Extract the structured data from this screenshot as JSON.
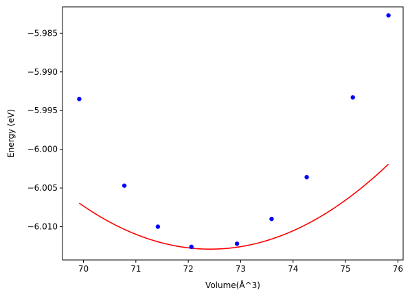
{
  "chart_data": {
    "type": "scatter",
    "title": "",
    "xlabel": "Volume(Å^3)",
    "ylabel": "Energy (eV)",
    "xlim": [
      69.6,
      76.1
    ],
    "ylim": [
      -6.0143,
      -5.9816
    ],
    "xticks": [
      70,
      71,
      72,
      73,
      74,
      75,
      76
    ],
    "xtick_labels": [
      "70",
      "71",
      "72",
      "73",
      "74",
      "75",
      "76"
    ],
    "yticks": [
      -6.01,
      -6.005,
      -6.0,
      -5.995,
      -5.99,
      -5.985
    ],
    "ytick_labels": [
      "−6.010",
      "−6.005",
      "−6.000",
      "−5.995",
      "−5.990",
      "−5.985"
    ],
    "grid": false,
    "series": [
      {
        "kind": "points",
        "color": "#0000ff",
        "x": [
          69.92,
          70.78,
          71.42,
          72.06,
          72.93,
          73.59,
          74.26,
          75.14,
          75.82
        ],
        "y": [
          -5.9935,
          -6.0047,
          -6.01,
          -6.0126,
          -6.0122,
          -6.009,
          -6.0036,
          -5.9933,
          -5.9827
        ]
      },
      {
        "kind": "fit-curve",
        "color": "#ff0000",
        "fit": {
          "a": 0.00095,
          "x0": 72.42,
          "y0": -6.0129
        },
        "x_range": [
          69.92,
          75.82
        ]
      }
    ]
  }
}
